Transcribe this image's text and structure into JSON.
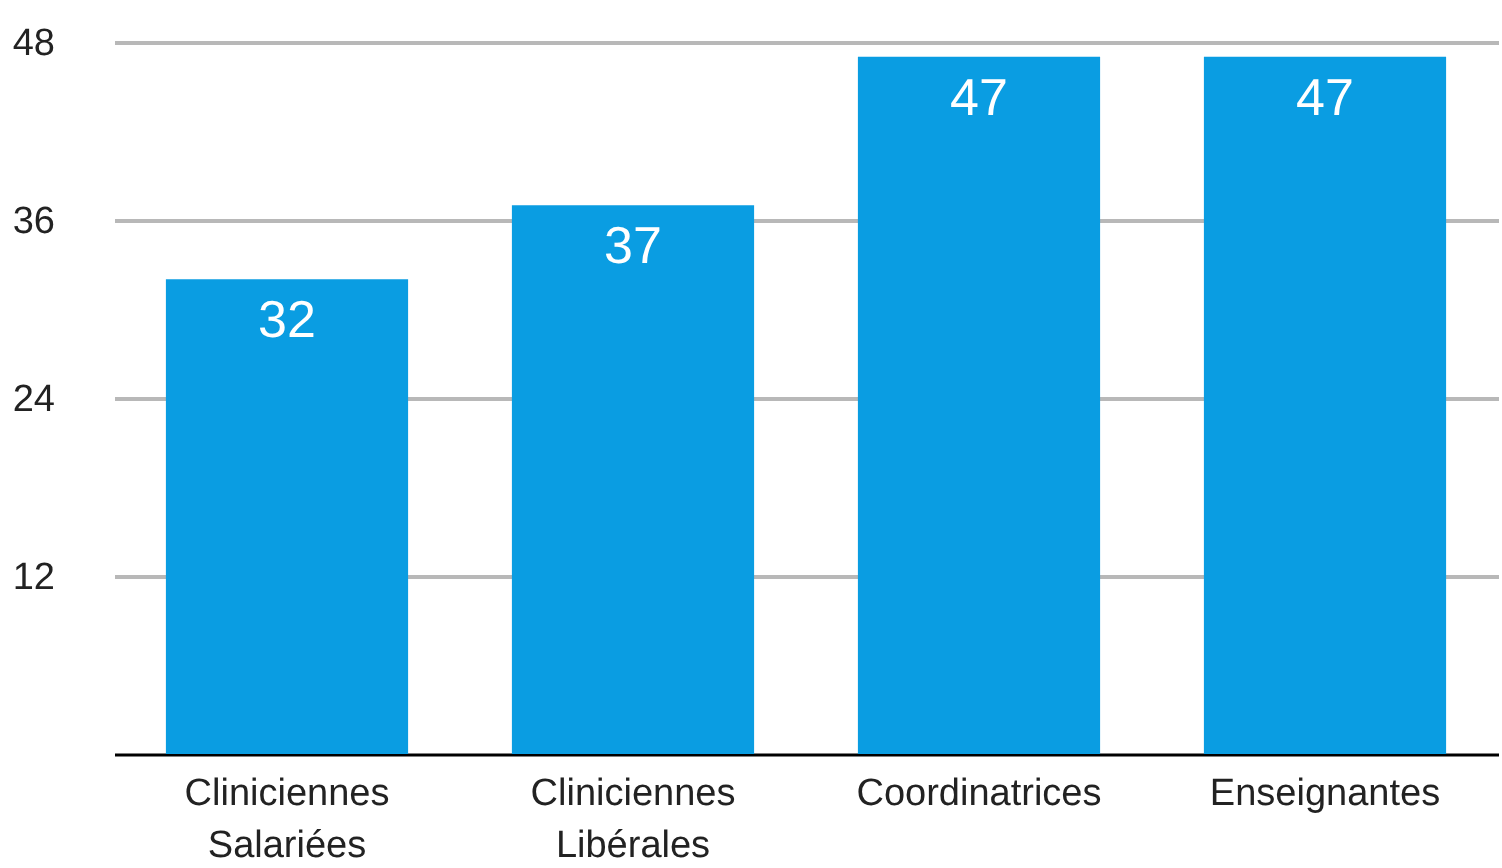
{
  "chart_data": {
    "type": "bar",
    "categories": [
      "Cliniciennes Salariées",
      "Cliniciennes Libérales",
      "Coordinatrices",
      "Enseignantes"
    ],
    "values": [
      32,
      37,
      47,
      47
    ],
    "color": "#0a9de2",
    "ylim": [
      0,
      48
    ],
    "yticks": [
      12,
      24,
      36,
      48
    ],
    "grid": "y",
    "data_labels": true
  }
}
